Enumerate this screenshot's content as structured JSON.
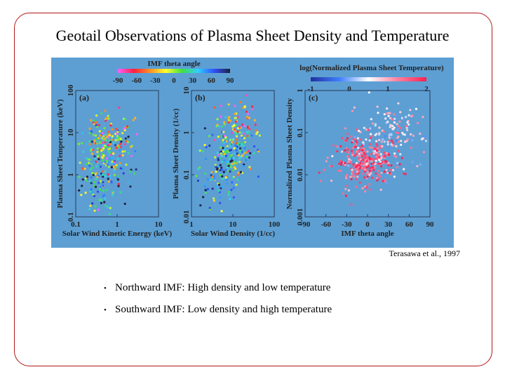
{
  "slide": {
    "title": "Geotail Observations of Plasma Sheet Density and Temperature",
    "credit": "Terasawa et al., 1997",
    "bullets": [
      "Northward IMF: High density and low temperature",
      "Southward IMF: Low density and high temperature"
    ]
  },
  "colors": {
    "figure_background": "#5d9fd3",
    "frame": "#b01818",
    "north_cluster": "#e8d840",
    "south_cluster": "#3050c8",
    "high_temp": "#e03a70"
  },
  "chart_data": [
    {
      "type": "colorbar",
      "title": "IMF theta angle",
      "ticks": [
        "-90",
        "-60",
        "-30",
        "0",
        "30",
        "60",
        "90"
      ],
      "range": [
        -90,
        90
      ],
      "colors": [
        "#ff60ff",
        "#ff2040",
        "#ff9020",
        "#ffff30",
        "#40e040",
        "#30d0ff",
        "#3050ff",
        "#202040"
      ]
    },
    {
      "type": "colorbar",
      "title": "log(Normalized Plasma Sheet Temperature)",
      "ticks": [
        "-1",
        "0",
        "1",
        "2"
      ],
      "range": [
        -1,
        2
      ],
      "colors": [
        "#2030a0",
        "#4080ff",
        "#ffffff",
        "#ff80a0",
        "#ff2050"
      ]
    },
    {
      "type": "scatter",
      "panel_label": "(a)",
      "xlabel": "Solar Wind Kinetic Energy (keV)",
      "ylabel": "Plasma Sheet Temperature (keV)",
      "x_scale": "log",
      "y_scale": "log",
      "xlim": [
        0.1,
        10
      ],
      "ylim": [
        0.1,
        100
      ],
      "x_ticks": [
        "0.1",
        "1",
        "10"
      ],
      "y_ticks": [
        "0.1",
        "1",
        "10",
        "100"
      ],
      "color_by": "IMF theta angle",
      "clusters": [
        {
          "center": [
            0.55,
            2.2
          ],
          "spread": [
            0.32,
            0.55
          ],
          "count": 170,
          "theta_mean": 15
        },
        {
          "center": [
            0.6,
            6.0
          ],
          "spread": [
            0.3,
            0.35
          ],
          "count": 110,
          "theta_mean": -35
        },
        {
          "center": [
            0.45,
            0.7
          ],
          "spread": [
            0.28,
            0.35
          ],
          "count": 60,
          "theta_mean": 60
        }
      ]
    },
    {
      "type": "scatter",
      "panel_label": "(b)",
      "xlabel": "Solar Wind Density (1/cc)",
      "ylabel": "Plasma Sheet Density (1/cc)",
      "x_scale": "log",
      "y_scale": "log",
      "xlim": [
        1,
        100
      ],
      "ylim": [
        0.01,
        10
      ],
      "x_ticks": [
        "1",
        "10",
        "100"
      ],
      "y_ticks": [
        "0.01",
        "0.1",
        "1",
        "10"
      ],
      "color_by": "IMF theta angle",
      "clusters": [
        {
          "center": [
            8,
            0.35
          ],
          "spread": [
            0.3,
            0.35
          ],
          "count": 190,
          "theta_mean": 20
        },
        {
          "center": [
            13,
            1.6
          ],
          "spread": [
            0.25,
            0.3
          ],
          "count": 70,
          "theta_mean": -45
        },
        {
          "center": [
            4,
            0.07
          ],
          "spread": [
            0.25,
            0.3
          ],
          "count": 60,
          "theta_mean": 50
        }
      ]
    },
    {
      "type": "scatter",
      "panel_label": "(c)",
      "xlabel": "IMF theta angle",
      "ylabel": "Normalized Plasma Sheet Density",
      "x_scale": "linear",
      "y_scale": "log",
      "xlim": [
        -90,
        90
      ],
      "ylim": [
        0.001,
        1
      ],
      "x_ticks": [
        "-90",
        "-60",
        "-30",
        "0",
        "30",
        "60",
        "90"
      ],
      "y_ticks": [
        "0.001",
        "0.01",
        "0.1",
        "1"
      ],
      "color_by": "log(Normalized Plasma Sheet Temperature)",
      "clusters": [
        {
          "center": [
            -5,
            0.022
          ],
          "spread": [
            22,
            0.28
          ],
          "count": 330,
          "theta_mean": 0
        },
        {
          "center": [
            35,
            0.09
          ],
          "spread": [
            22,
            0.35
          ],
          "count": 130,
          "theta_mean": 0
        }
      ]
    }
  ]
}
